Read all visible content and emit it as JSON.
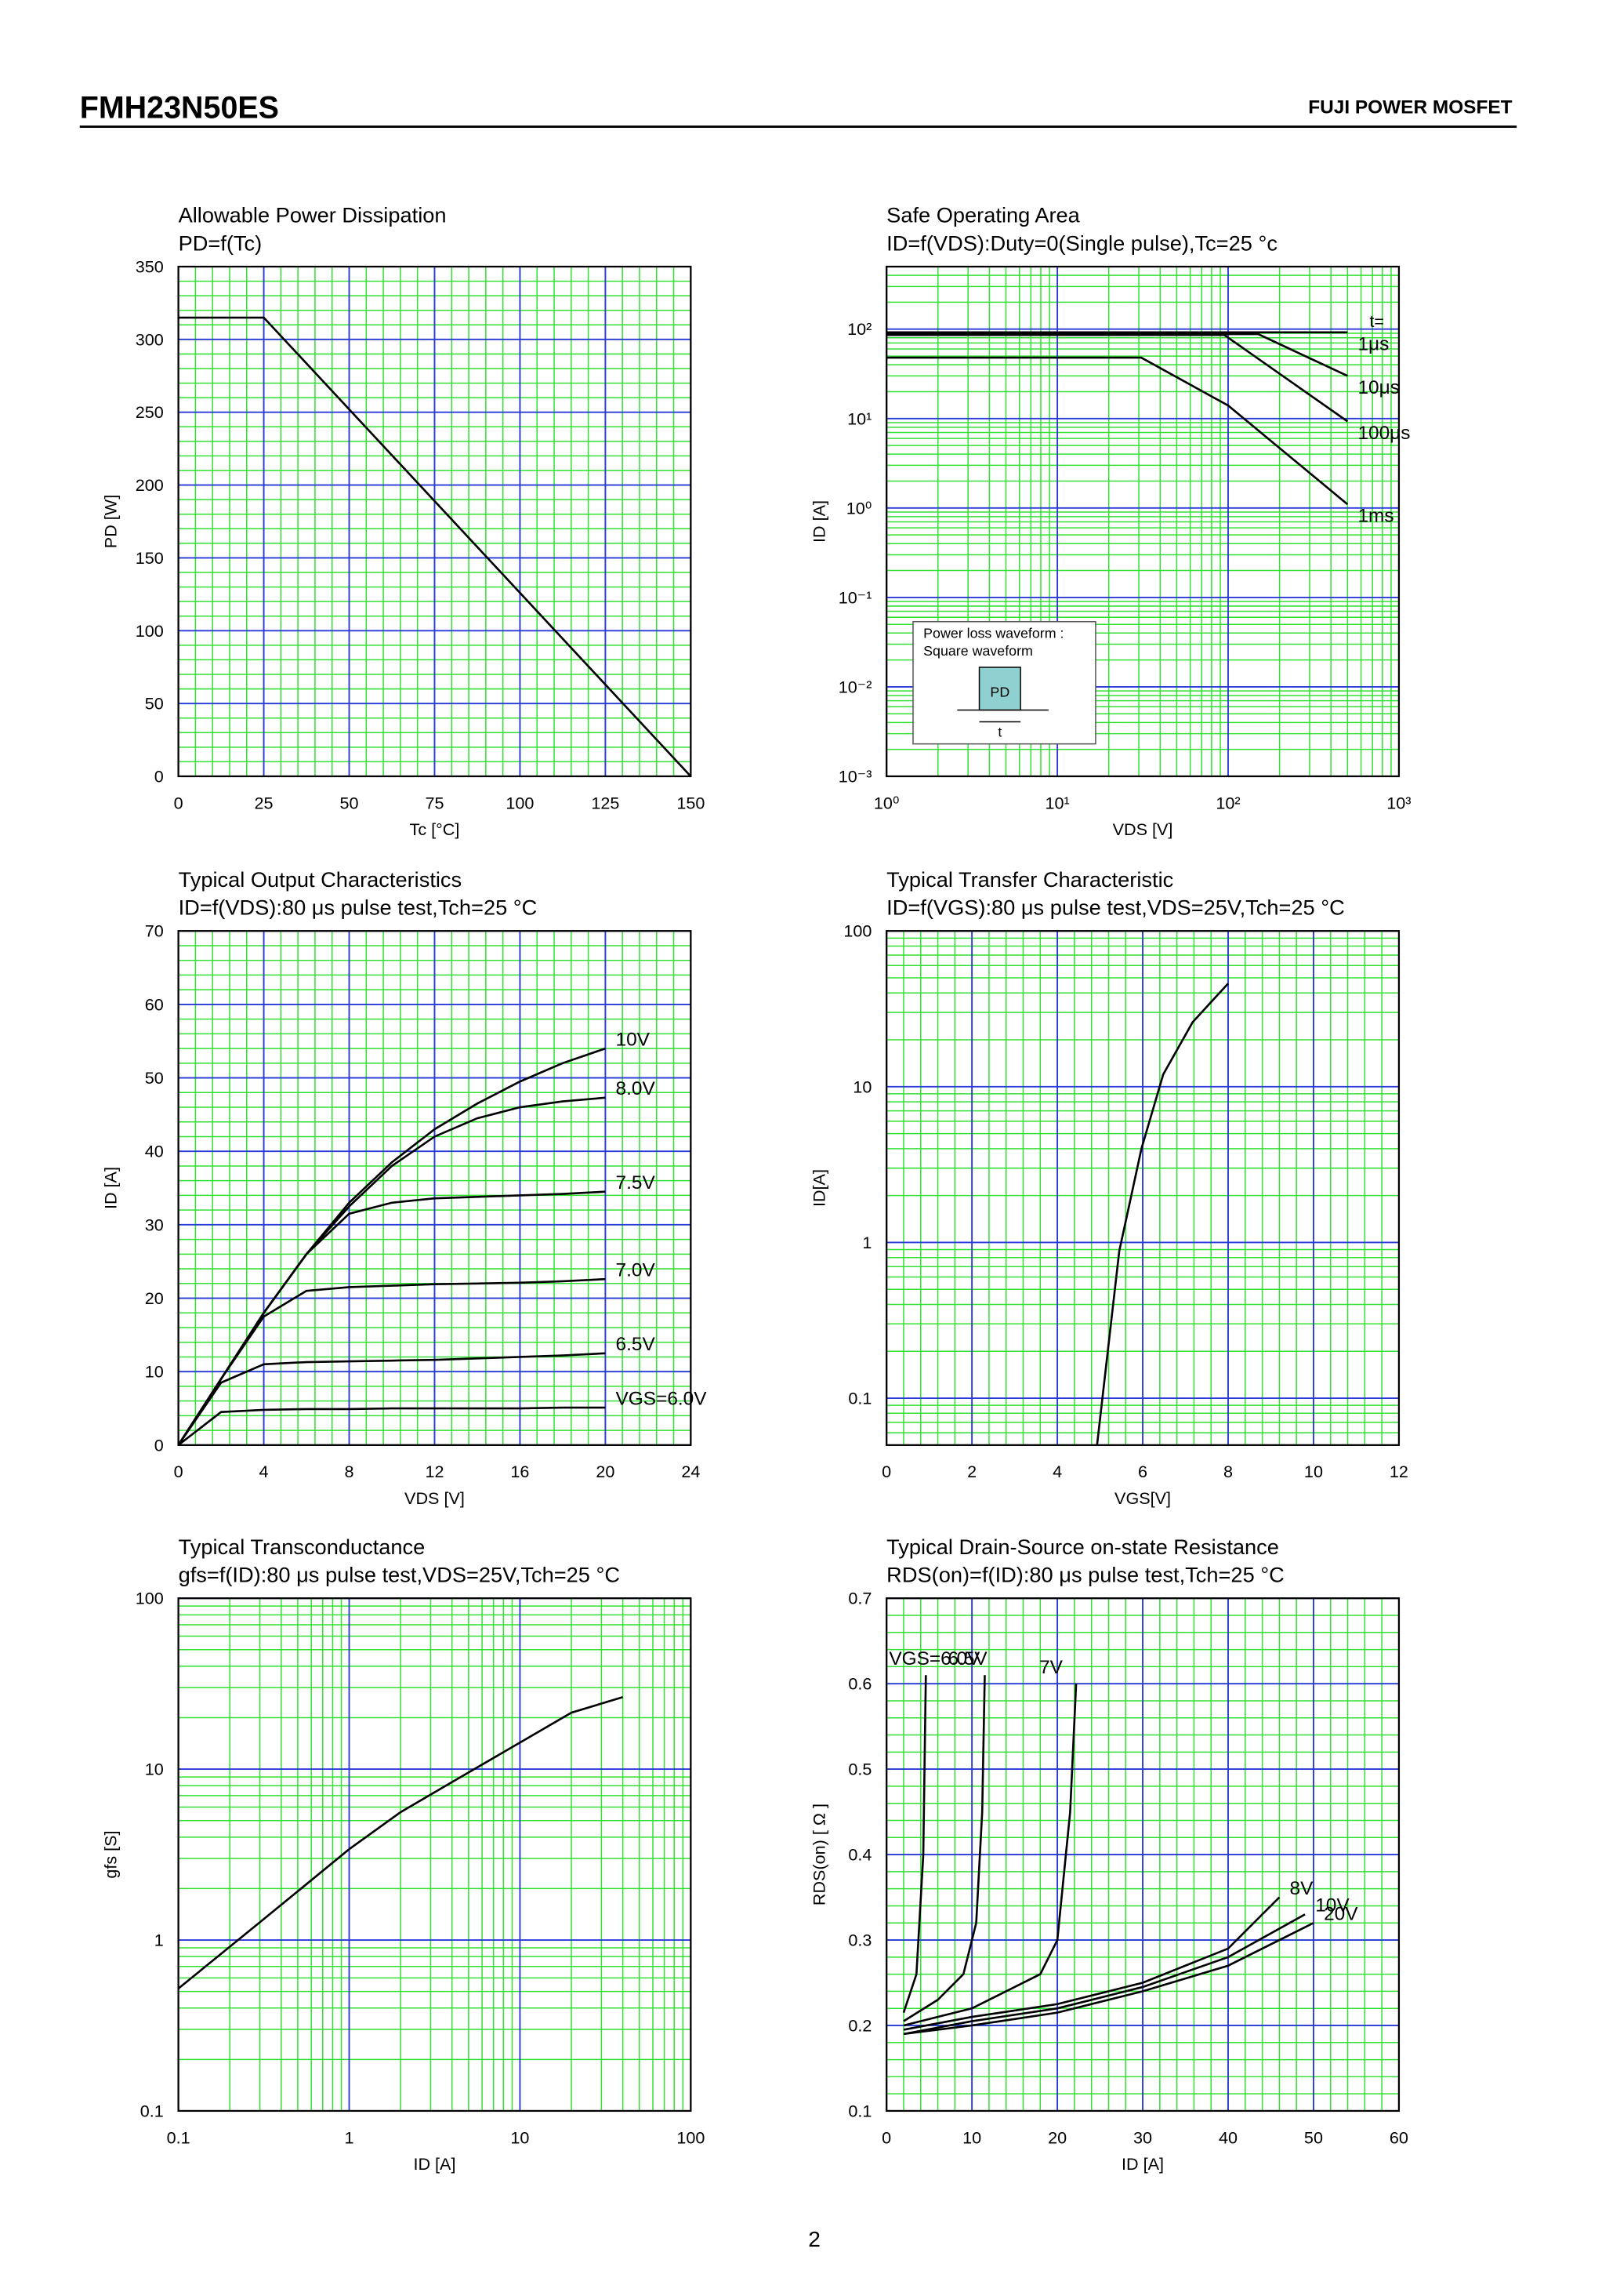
{
  "header": {
    "part": "FMH23N50ES",
    "brand": "FUJI POWER MOSFET"
  },
  "page_number": "2",
  "chart_data": [
    {
      "type": "line",
      "title": "Allowable Power Dissipation",
      "subtitle": "PD=f(Tc)",
      "x_label": "Tc [°C]",
      "y_label": "PD [W]",
      "xlim": [
        0,
        150
      ],
      "xticks": [
        0,
        25,
        50,
        75,
        100,
        125,
        150
      ],
      "ylim": [
        0,
        350
      ],
      "yticks": [
        0,
        50,
        100,
        150,
        200,
        250,
        300,
        350
      ],
      "grid": true,
      "grid_major_color": "#2a3ad8",
      "grid_minor_color": "#33e033",
      "color": "#000000",
      "series": [
        {
          "x": [
            0,
            25,
            150
          ],
          "values": [
            315,
            315,
            0
          ]
        }
      ]
    },
    {
      "type": "line",
      "title": "Safe Operating Area",
      "subtitle": "ID=f(VDS):Duty=0(Single pulse),Tc=25 °c",
      "x_label": "VDS [V]",
      "y_label": "ID [A]",
      "xlog": true,
      "ylog": true,
      "xlim": [
        1,
        1000
      ],
      "xticks": [
        {
          "value": 1,
          "label": "10⁰"
        },
        {
          "value": 10,
          "label": "10¹"
        },
        {
          "value": 100,
          "label": "10²"
        },
        {
          "value": 1000,
          "label": "10³"
        }
      ],
      "ylim": [
        0.001,
        500
      ],
      "yticks": [
        {
          "value": 0.001,
          "label": "10⁻³"
        },
        {
          "value": 0.01,
          "label": "10⁻²"
        },
        {
          "value": 0.1,
          "label": "10⁻¹"
        },
        {
          "value": 1,
          "label": "10⁰"
        },
        {
          "value": 10,
          "label": "10¹"
        },
        {
          "value": 100,
          "label": "10²"
        }
      ],
      "grid": true,
      "grid_major_color": "#2a3ad8",
      "grid_minor_color": "#33e033",
      "color": "#000000",
      "annotations": [
        "t=",
        "Power loss waveform :",
        "Square waveform",
        "PD",
        "t"
      ],
      "series": [
        {
          "name": "1μs",
          "x": [
            1,
            500
          ],
          "values": [
            92,
            92
          ]
        },
        {
          "name": "10μs",
          "x": [
            1,
            150,
            500
          ],
          "values": [
            88,
            88,
            30
          ]
        },
        {
          "name": "100μs",
          "x": [
            1,
            95,
            500
          ],
          "values": [
            86,
            86,
            9.3
          ]
        },
        {
          "name": "1ms",
          "x": [
            1,
            31,
            100,
            500
          ],
          "values": [
            48,
            48,
            14,
            1.1
          ]
        }
      ]
    },
    {
      "type": "line",
      "title": "Typical Output Characteristics",
      "subtitle": "ID=f(VDS):80 μs pulse test,Tch=25 °C",
      "x_label": "VDS [V]",
      "y_label": "ID [A]",
      "xlim": [
        0,
        24
      ],
      "xticks": [
        0,
        4,
        8,
        12,
        16,
        20,
        24
      ],
      "ylim": [
        0,
        70
      ],
      "yticks": [
        0,
        10,
        20,
        30,
        40,
        50,
        60,
        70
      ],
      "grid": true,
      "grid_major_color": "#2a3ad8",
      "grid_minor_color": "#33e033",
      "color": "#000000",
      "series": [
        {
          "name": "10V",
          "x": [
            0,
            2,
            4,
            6,
            8,
            10,
            12,
            14,
            16,
            18,
            20
          ],
          "values": [
            0,
            9,
            18,
            26,
            33,
            38.5,
            43,
            46.5,
            49.5,
            52,
            54
          ]
        },
        {
          "name": "8.0V",
          "x": [
            0,
            2,
            4,
            6,
            8,
            10,
            12,
            14,
            16,
            18,
            20
          ],
          "values": [
            0,
            9,
            18,
            26,
            32.5,
            38,
            42,
            44.5,
            46,
            46.8,
            47.3
          ]
        },
        {
          "name": "7.5V",
          "x": [
            0,
            2,
            4,
            6,
            8,
            10,
            12,
            14,
            16,
            18,
            20
          ],
          "values": [
            0,
            9,
            18,
            26,
            31.5,
            33,
            33.6,
            33.8,
            34,
            34.2,
            34.5
          ]
        },
        {
          "name": "7.0V",
          "x": [
            0,
            2,
            4,
            6,
            8,
            10,
            12,
            14,
            16,
            18,
            20
          ],
          "values": [
            0,
            9,
            17.5,
            21,
            21.5,
            21.7,
            21.9,
            22,
            22.1,
            22.3,
            22.6
          ]
        },
        {
          "name": "6.5V",
          "x": [
            0,
            2,
            4,
            6,
            8,
            10,
            12,
            14,
            16,
            18,
            20
          ],
          "values": [
            0,
            8.5,
            11,
            11.3,
            11.4,
            11.5,
            11.6,
            11.8,
            12,
            12.2,
            12.5
          ]
        },
        {
          "name": "VGS=6.0V",
          "x": [
            0,
            2,
            4,
            6,
            8,
            10,
            12,
            14,
            16,
            18,
            20
          ],
          "values": [
            0,
            4.5,
            4.8,
            4.9,
            4.9,
            5,
            5,
            5,
            5,
            5.1,
            5.1
          ]
        }
      ]
    },
    {
      "type": "line",
      "title": "Typical Transfer Characteristic",
      "subtitle": "ID=f(VGS):80 μs pulse test,VDS=25V,Tch=25 °C",
      "x_label": "VGS[V]",
      "y_label": "ID[A]",
      "ylog": true,
      "xlim": [
        0,
        12
      ],
      "xticks": [
        0,
        2,
        4,
        6,
        8,
        10,
        12
      ],
      "ylim": [
        0.05,
        100
      ],
      "yticks": [
        0.1,
        1,
        10,
        100
      ],
      "grid": true,
      "grid_major_color": "#2a3ad8",
      "grid_minor_color": "#33e033",
      "color": "#000000",
      "series": [
        {
          "x": [
            4.93,
            5.45,
            5.97,
            6.48,
            7.17,
            8.0
          ],
          "values": [
            0.05,
            0.88,
            4.0,
            12,
            26,
            46
          ]
        }
      ]
    },
    {
      "type": "line",
      "title": "Typical Transconductance",
      "subtitle": "gfs=f(ID):80 μs pulse test,VDS=25V,Tch=25  °C",
      "x_label": "ID [A]",
      "y_label": "gfs [S]",
      "xlog": true,
      "ylog": true,
      "xlim": [
        0.1,
        100
      ],
      "xticks": [
        0.1,
        1,
        10,
        100
      ],
      "ylim": [
        0.1,
        100
      ],
      "yticks": [
        0.1,
        1,
        10,
        100
      ],
      "grid": true,
      "grid_major_color": "#2a3ad8",
      "grid_minor_color": "#33e033",
      "color": "#000000",
      "series": [
        {
          "x": [
            0.1,
            0.3,
            1,
            2,
            4,
            10,
            20,
            40
          ],
          "values": [
            0.52,
            1.27,
            3.4,
            5.6,
            8.4,
            14.3,
            21.4,
            26.4
          ]
        }
      ]
    },
    {
      "type": "line",
      "title": "Typical Drain-Source on-state Resistance",
      "subtitle": "RDS(on)=f(ID):80  μs pulse test,Tch=25  °C",
      "x_label": "ID [A]",
      "y_label": "RDS(on) [ Ω ]",
      "xlim": [
        0,
        60
      ],
      "xticks": [
        0,
        10,
        20,
        30,
        40,
        50,
        60
      ],
      "ylim": [
        0.1,
        0.7
      ],
      "yticks": [
        0.1,
        0.2,
        0.3,
        0.4,
        0.5,
        0.6,
        0.7
      ],
      "grid": true,
      "grid_major_color": "#2a3ad8",
      "grid_minor_color": "#33e033",
      "color": "#000000",
      "series": [
        {
          "name": "VGS=6.0V",
          "x": [
            2,
            3.5,
            4.3,
            4.6
          ],
          "values": [
            0.215,
            0.26,
            0.4,
            0.61
          ]
        },
        {
          "name": "6.5V",
          "x": [
            2,
            6,
            9,
            10.5,
            11.2,
            11.5
          ],
          "values": [
            0.205,
            0.23,
            0.26,
            0.32,
            0.45,
            0.61
          ]
        },
        {
          "name": "7V",
          "x": [
            2,
            10,
            18,
            20,
            21.5,
            22.2
          ],
          "values": [
            0.2,
            0.22,
            0.26,
            0.3,
            0.45,
            0.6
          ]
        },
        {
          "name": "8V",
          "x": [
            2,
            10,
            20,
            30,
            40,
            46
          ],
          "values": [
            0.195,
            0.21,
            0.225,
            0.25,
            0.29,
            0.35
          ]
        },
        {
          "name": "10V",
          "x": [
            2,
            10,
            20,
            30,
            40,
            49
          ],
          "values": [
            0.19,
            0.205,
            0.22,
            0.245,
            0.28,
            0.33
          ]
        },
        {
          "name": "20V",
          "x": [
            2,
            10,
            20,
            30,
            40,
            50
          ],
          "values": [
            0.19,
            0.2,
            0.215,
            0.24,
            0.27,
            0.32
          ]
        }
      ]
    }
  ]
}
